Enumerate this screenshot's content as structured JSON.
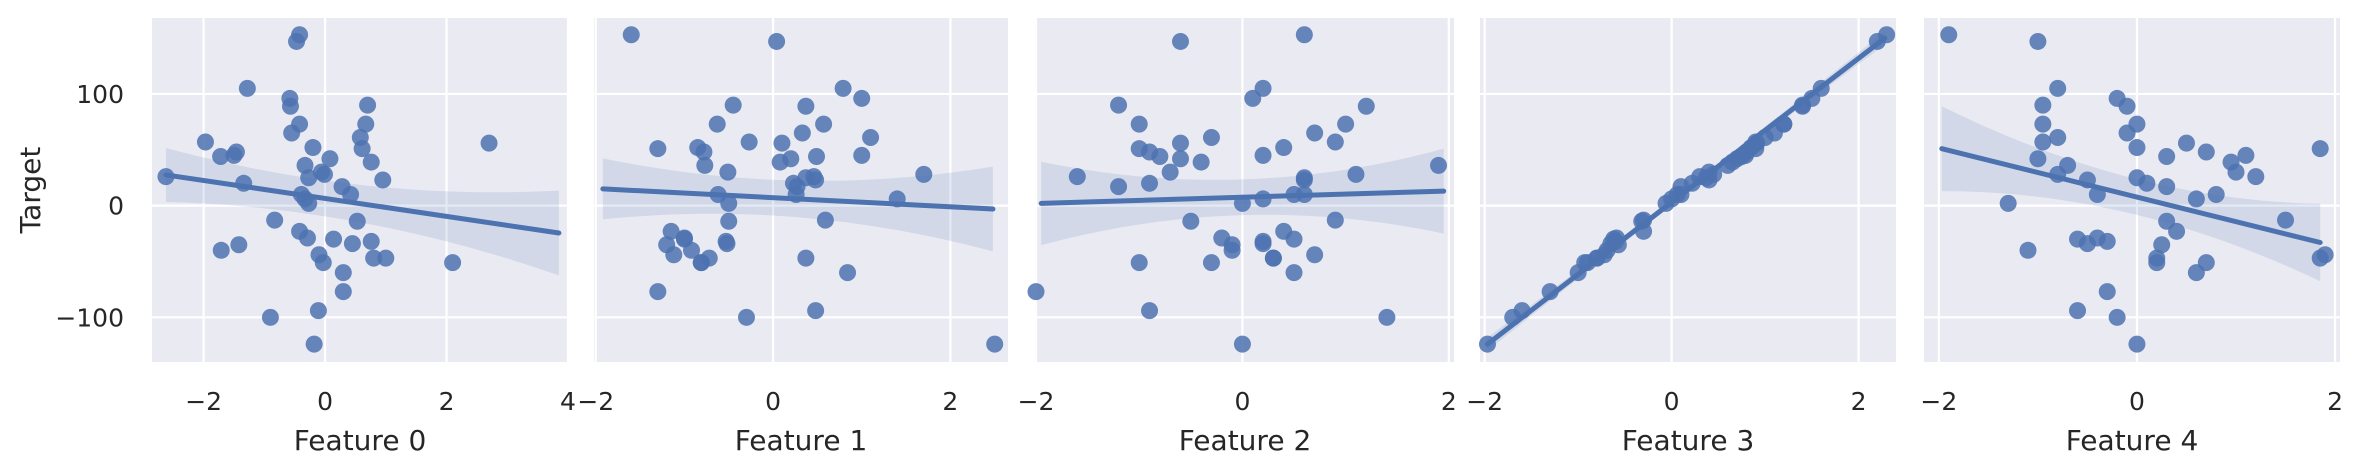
{
  "chart_data": {
    "type": "scatter",
    "ylabel": "Target",
    "ylim": [
      -140,
      168
    ],
    "yticks": [
      -100,
      0,
      100
    ],
    "ytick_labels": [
      "−100",
      "0",
      "100"
    ],
    "colors": {
      "background": "#EAEAF2",
      "grid": "#FFFFFF",
      "points": "#4C72B0",
      "band": "#4C72B0"
    },
    "grid": true,
    "points_y": [
      26,
      -47,
      30,
      -23,
      57,
      153,
      105,
      -60,
      -94,
      17,
      44,
      -44,
      36,
      20,
      39,
      42,
      23,
      -13,
      -51,
      56,
      65,
      25,
      -29,
      51,
      -30,
      45,
      -14,
      147,
      90,
      -100,
      48,
      52,
      73,
      -32,
      28,
      6,
      10,
      -35,
      -124,
      -47,
      2,
      96,
      -40,
      10,
      -77,
      73,
      -34,
      61,
      -51,
      89
    ],
    "panels": [
      {
        "xlabel": "Feature 0",
        "xlim": [
          -2.85,
          4.0
        ],
        "xticks": [
          -2,
          0,
          2,
          4
        ],
        "xtick_labels": [
          "−2",
          "0",
          "2",
          "4"
        ],
        "x": [
          -2.62,
          1.0,
          -0.06,
          -0.42,
          -1.97,
          -0.42,
          -1.28,
          0.3,
          -0.11,
          0.28,
          -1.72,
          -0.1,
          -0.33,
          -1.34,
          0.76,
          0.08,
          0.95,
          -0.83,
          -0.03,
          2.7,
          -0.55,
          -0.27,
          -0.29,
          0.61,
          0.14,
          -1.5,
          0.53,
          -0.47,
          0.7,
          -0.9,
          -1.46,
          -0.2,
          0.67,
          0.76,
          -0.01,
          -0.33,
          -0.39,
          -1.42,
          -0.18,
          0.8,
          -0.27,
          -0.58,
          -1.71,
          0.42,
          0.3,
          -0.42,
          0.45,
          0.58,
          2.1,
          -0.57
        ],
        "fit": [
          [
            -2.62,
            27.5
          ],
          [
            3.85,
            -24.5
          ]
        ]
      },
      {
        "xlabel": "Feature 1",
        "xlim": [
          -2.02,
          2.65
        ],
        "xticks": [
          -2,
          0,
          2
        ],
        "xtick_labels": [
          "−2",
          "0",
          "2"
        ],
        "x": [
          0.46,
          0.37,
          -0.51,
          -1.15,
          -0.27,
          -1.6,
          0.79,
          0.84,
          0.48,
          0.27,
          0.49,
          -1.12,
          -0.77,
          0.23,
          0.08,
          0.2,
          0.48,
          0.59,
          -0.81,
          0.1,
          0.33,
          0.37,
          -1.0,
          -1.3,
          -1.0,
          1.0,
          -0.5,
          0.04,
          -0.45,
          -0.3,
          -0.78,
          -0.85,
          -0.63,
          -0.53,
          1.7,
          1.4,
          -0.62,
          -1.2,
          2.5,
          -0.72,
          -0.5,
          1.0,
          -0.92,
          0.26,
          -1.3,
          0.57,
          -0.52,
          1.1,
          -0.81,
          0.37
        ],
        "fit": [
          [
            -1.92,
            15.0
          ],
          [
            2.48,
            -3.0
          ]
        ]
      },
      {
        "xlabel": "Feature 2",
        "xlim": [
          -2.0,
          2.05
        ],
        "xticks": [
          -2,
          0,
          2
        ],
        "xtick_labels": [
          "−2",
          "0",
          "2"
        ],
        "x": [
          -1.6,
          0.3,
          -0.7,
          0.4,
          0.9,
          0.6,
          0.2,
          0.5,
          -0.9,
          -1.2,
          -0.8,
          0.7,
          1.9,
          -0.9,
          -0.4,
          -0.6,
          0.6,
          0.9,
          -1.0,
          -0.6,
          0.7,
          0.6,
          -0.2,
          -1.0,
          0.5,
          0.2,
          -0.5,
          -0.6,
          -1.2,
          1.4,
          -0.9,
          0.4,
          -1.0,
          0.2,
          1.1,
          0.2,
          0.5,
          -0.1,
          0.0,
          0.3,
          0.0,
          0.1,
          -0.1,
          0.6,
          -2.0,
          1.0,
          0.2,
          -0.3,
          -0.3,
          1.2
        ],
        "fit": [
          [
            -1.95,
            2.0
          ],
          [
            1.95,
            13.0
          ]
        ]
      },
      {
        "xlabel": "Feature 3",
        "xlim": [
          -2.05,
          2.4
        ],
        "xticks": [
          -2,
          0,
          2
        ],
        "xtick_labels": [
          "−2",
          "0",
          "2"
        ],
        "x": [
          0.3,
          -0.8,
          0.4,
          -0.3,
          0.9,
          2.3,
          1.6,
          -1.0,
          -1.6,
          0.1,
          0.75,
          -0.72,
          0.6,
          0.22,
          0.65,
          0.7,
          0.4,
          -0.3,
          -0.93,
          0.91,
          1.1,
          0.37,
          -0.59,
          0.9,
          -0.62,
          0.79,
          -0.32,
          2.2,
          1.4,
          -1.7,
          0.8,
          0.85,
          1.2,
          -0.6,
          0.45,
          0.0,
          0.06,
          -0.57,
          -1.97,
          -0.8,
          -0.06,
          1.5,
          -0.69,
          0.1,
          -1.3,
          1.2,
          -0.65,
          1.0,
          -0.9,
          1.4
        ],
        "fit": [
          [
            -1.97,
            -124.0
          ],
          [
            2.28,
            150.0
          ]
        ]
      },
      {
        "xlabel": "Feature 4",
        "xlim": [
          -2.15,
          2.05
        ],
        "xticks": [
          -2,
          0,
          2
        ],
        "xtick_labels": [
          "−2",
          "0",
          "2"
        ],
        "x": [
          1.2,
          1.85,
          1.0,
          0.4,
          -0.95,
          -1.9,
          -0.8,
          0.6,
          -0.6,
          0.3,
          0.3,
          1.9,
          -0.7,
          0.1,
          0.95,
          -1.0,
          -0.5,
          1.5,
          0.7,
          0.5,
          -0.1,
          0.0,
          -0.4,
          1.85,
          -0.6,
          1.1,
          0.3,
          -1.0,
          -0.95,
          -0.2,
          0.7,
          0.0,
          0.0,
          -0.3,
          -0.8,
          0.6,
          0.8,
          0.25,
          0.0,
          0.2,
          -1.3,
          -0.2,
          -1.1,
          -0.4,
          -0.3,
          -0.95,
          -0.5,
          -0.8,
          0.2,
          -0.1
        ],
        "fit": [
          [
            -1.97,
            51.0
          ],
          [
            1.85,
            -33.0
          ]
        ]
      }
    ]
  }
}
